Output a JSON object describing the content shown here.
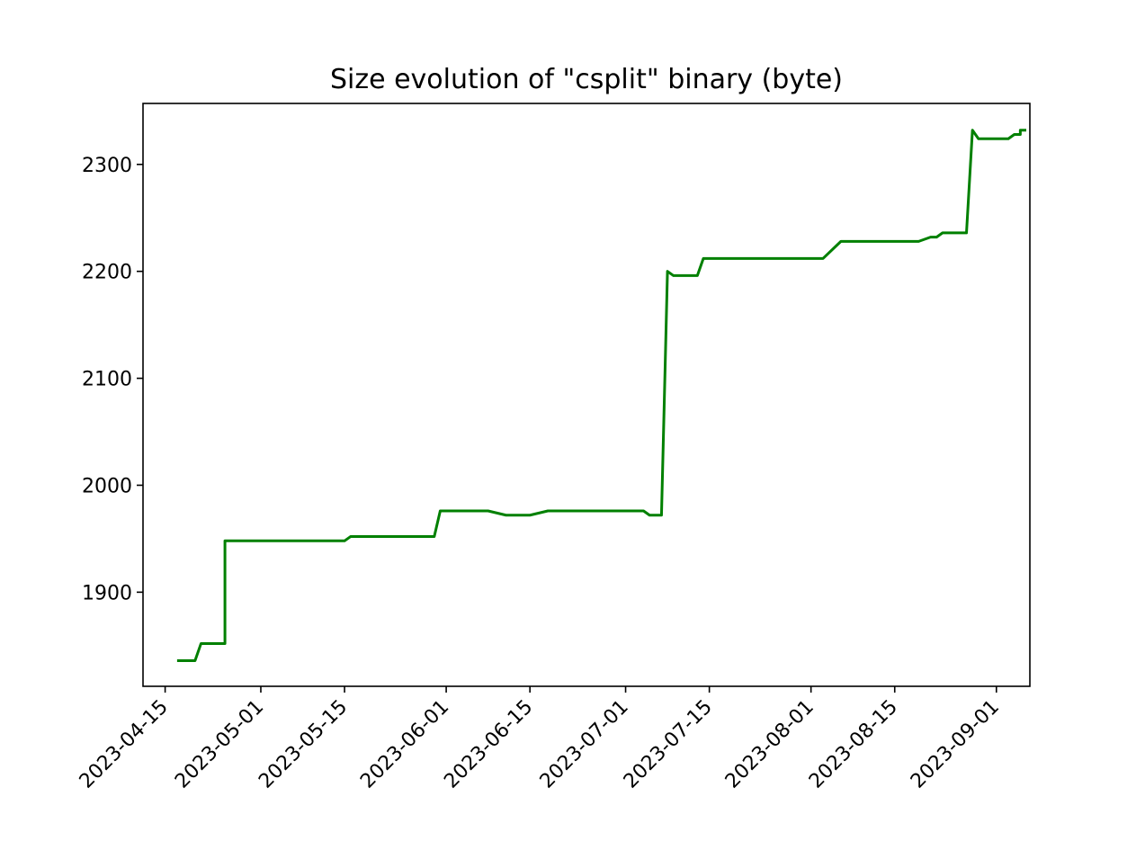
{
  "chart_data": {
    "type": "line",
    "title": "Size evolution of \"csplit\" binary (byte)",
    "xlabel": "",
    "ylabel": "",
    "x_axis": "date",
    "xlim": [
      "2023-04-10",
      "2023-09-05"
    ],
    "ylim": [
      1812,
      2357
    ],
    "grid": false,
    "legend": "none",
    "x_ticks": [
      "2023-04-15",
      "2023-05-01",
      "2023-05-15",
      "2023-06-01",
      "2023-06-15",
      "2023-07-01",
      "2023-07-15",
      "2023-08-01",
      "2023-08-15",
      "2023-09-01"
    ],
    "y_ticks": [
      1900,
      2000,
      2100,
      2200,
      2300
    ],
    "series": [
      {
        "color": "#008000",
        "points": [
          [
            "2023-04-17",
            1836
          ],
          [
            "2023-04-20",
            1836
          ],
          [
            "2023-04-21",
            1852
          ],
          [
            "2023-04-25",
            1852
          ],
          [
            "2023-04-25",
            1948
          ],
          [
            "2023-05-15",
            1948
          ],
          [
            "2023-05-16",
            1952
          ],
          [
            "2023-05-30",
            1952
          ],
          [
            "2023-05-31",
            1976
          ],
          [
            "2023-06-08",
            1976
          ],
          [
            "2023-06-11",
            1972
          ],
          [
            "2023-06-15",
            1972
          ],
          [
            "2023-06-18",
            1976
          ],
          [
            "2023-07-04",
            1976
          ],
          [
            "2023-07-05",
            1972
          ],
          [
            "2023-07-07",
            1972
          ],
          [
            "2023-07-08",
            2200
          ],
          [
            "2023-07-09",
            2196
          ],
          [
            "2023-07-13",
            2196
          ],
          [
            "2023-07-14",
            2212
          ],
          [
            "2023-08-03",
            2212
          ],
          [
            "2023-08-06",
            2228
          ],
          [
            "2023-08-19",
            2228
          ],
          [
            "2023-08-21",
            2232
          ],
          [
            "2023-08-22",
            2232
          ],
          [
            "2023-08-23",
            2236
          ],
          [
            "2023-08-27",
            2236
          ],
          [
            "2023-08-28",
            2332
          ],
          [
            "2023-08-29",
            2324
          ],
          [
            "2023-09-03",
            2324
          ],
          [
            "2023-09-04",
            2328
          ],
          [
            "2023-09-05",
            2328
          ],
          [
            "2023-09-05",
            2332
          ],
          [
            "2023-09-06",
            2332
          ]
        ]
      }
    ]
  }
}
